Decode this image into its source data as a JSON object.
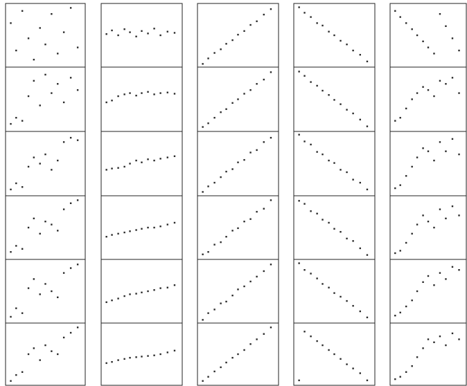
{
  "chart_data": [
    {
      "type": "scatter",
      "color": "#2a2a2a",
      "xlim": [
        0,
        1
      ],
      "ylim": [
        0,
        1
      ],
      "x": [
        0.05,
        0.12,
        0.2,
        0.28,
        0.35,
        0.43,
        0.5,
        0.58,
        0.66,
        0.74,
        0.83,
        0.92
      ],
      "y": [
        0.7,
        0.25,
        0.9,
        0.45,
        0.1,
        0.62,
        0.35,
        0.85,
        0.2,
        0.55,
        0.95,
        0.3
      ]
    },
    {
      "type": "scatter",
      "color": "#2a2a2a",
      "xlim": [
        0,
        1
      ],
      "ylim": [
        0,
        1
      ],
      "x": [
        0.05,
        0.12,
        0.2,
        0.28,
        0.35,
        0.43,
        0.5,
        0.58,
        0.66,
        0.74,
        0.83,
        0.92
      ],
      "y": [
        0.52,
        0.58,
        0.5,
        0.6,
        0.55,
        0.48,
        0.57,
        0.53,
        0.61,
        0.5,
        0.56,
        0.54
      ]
    },
    {
      "type": "scatter",
      "color": "#2a2a2a",
      "xlim": [
        0,
        1
      ],
      "ylim": [
        0,
        1
      ],
      "x": [
        0.05,
        0.12,
        0.2,
        0.28,
        0.35,
        0.43,
        0.5,
        0.58,
        0.66,
        0.74,
        0.83,
        0.92
      ],
      "y": [
        0.03,
        0.12,
        0.21,
        0.27,
        0.36,
        0.42,
        0.51,
        0.57,
        0.67,
        0.73,
        0.84,
        0.93
      ]
    },
    {
      "type": "scatter",
      "color": "#2a2a2a",
      "xlim": [
        0,
        1
      ],
      "ylim": [
        0,
        1
      ],
      "x": [
        0.05,
        0.12,
        0.2,
        0.28,
        0.35,
        0.43,
        0.5,
        0.58,
        0.66,
        0.74,
        0.83,
        0.92
      ],
      "y": [
        0.96,
        0.87,
        0.8,
        0.7,
        0.66,
        0.56,
        0.5,
        0.41,
        0.35,
        0.25,
        0.18,
        0.07
      ]
    },
    {
      "type": "scatter",
      "color": "#2a2a2a",
      "xlim": [
        0,
        1
      ],
      "ylim": [
        0,
        1
      ],
      "x": [
        0.05,
        0.12,
        0.2,
        0.28,
        0.35,
        0.43,
        0.5,
        0.58,
        0.66,
        0.74,
        0.83,
        0.92
      ],
      "y": [
        0.9,
        0.8,
        0.7,
        0.6,
        0.5,
        0.4,
        0.3,
        0.2,
        0.85,
        0.65,
        0.45,
        0.25
      ]
    },
    {
      "type": "scatter",
      "color": "#2a2a2a",
      "xlim": [
        0,
        1
      ],
      "ylim": [
        0,
        1
      ],
      "x": [
        0.05,
        0.12,
        0.2,
        0.28,
        0.35,
        0.43,
        0.5,
        0.58,
        0.66,
        0.74,
        0.83,
        0.92
      ],
      "y": [
        0.1,
        0.2,
        0.15,
        0.55,
        0.8,
        0.4,
        0.9,
        0.6,
        0.75,
        0.45,
        0.85,
        0.65
      ]
    },
    {
      "type": "scatter",
      "color": "#2a2a2a",
      "xlim": [
        0,
        1
      ],
      "ylim": [
        0,
        1
      ],
      "x": [
        0.05,
        0.12,
        0.2,
        0.28,
        0.35,
        0.43,
        0.5,
        0.58,
        0.66,
        0.74,
        0.83,
        0.92
      ],
      "y": [
        0.45,
        0.48,
        0.55,
        0.58,
        0.6,
        0.56,
        0.6,
        0.62,
        0.58,
        0.6,
        0.61,
        0.59
      ]
    },
    {
      "type": "scatter",
      "color": "#2a2a2a",
      "xlim": [
        0,
        1
      ],
      "ylim": [
        0,
        1
      ],
      "x": [
        0.05,
        0.12,
        0.2,
        0.28,
        0.35,
        0.43,
        0.5,
        0.58,
        0.66,
        0.74,
        0.83,
        0.92
      ],
      "y": [
        0.05,
        0.11,
        0.2,
        0.29,
        0.34,
        0.44,
        0.5,
        0.59,
        0.65,
        0.75,
        0.82,
        0.94
      ]
    },
    {
      "type": "scatter",
      "color": "#2a2a2a",
      "xlim": [
        0,
        1
      ],
      "ylim": [
        0,
        1
      ],
      "x": [
        0.05,
        0.12,
        0.2,
        0.28,
        0.35,
        0.43,
        0.5,
        0.58,
        0.66,
        0.74,
        0.83,
        0.92
      ],
      "y": [
        0.95,
        0.88,
        0.78,
        0.72,
        0.64,
        0.57,
        0.49,
        0.42,
        0.33,
        0.27,
        0.17,
        0.06
      ]
    },
    {
      "type": "scatter",
      "color": "#2a2a2a",
      "xlim": [
        0,
        1
      ],
      "ylim": [
        0,
        1
      ],
      "x": [
        0.05,
        0.12,
        0.2,
        0.28,
        0.35,
        0.43,
        0.5,
        0.58,
        0.66,
        0.74,
        0.83,
        0.92
      ],
      "y": [
        0.15,
        0.2,
        0.35,
        0.5,
        0.6,
        0.7,
        0.65,
        0.55,
        0.8,
        0.75,
        0.85,
        0.6
      ]
    },
    {
      "type": "scatter",
      "color": "#2a2a2a",
      "xlim": [
        0,
        1
      ],
      "ylim": [
        0,
        1
      ],
      "x": [
        0.05,
        0.12,
        0.2,
        0.28,
        0.35,
        0.43,
        0.5,
        0.58,
        0.66,
        0.74,
        0.83,
        0.92
      ],
      "y": [
        0.08,
        0.18,
        0.12,
        0.45,
        0.6,
        0.5,
        0.65,
        0.4,
        0.55,
        0.85,
        0.92,
        0.88
      ]
    },
    {
      "type": "scatter",
      "color": "#2a2a2a",
      "xlim": [
        0,
        1
      ],
      "ylim": [
        0,
        1
      ],
      "x": [
        0.05,
        0.12,
        0.2,
        0.28,
        0.35,
        0.43,
        0.5,
        0.58,
        0.66,
        0.74,
        0.83,
        0.92
      ],
      "y": [
        0.4,
        0.42,
        0.43,
        0.45,
        0.5,
        0.55,
        0.52,
        0.57,
        0.55,
        0.58,
        0.6,
        0.62
      ]
    },
    {
      "type": "scatter",
      "color": "#2a2a2a",
      "xlim": [
        0,
        1
      ],
      "ylim": [
        0,
        1
      ],
      "x": [
        0.05,
        0.12,
        0.2,
        0.28,
        0.35,
        0.43,
        0.5,
        0.58,
        0.66,
        0.74,
        0.83,
        0.92
      ],
      "y": [
        0.04,
        0.13,
        0.19,
        0.28,
        0.37,
        0.41,
        0.52,
        0.56,
        0.68,
        0.72,
        0.85,
        0.92
      ]
    },
    {
      "type": "scatter",
      "color": "#2a2a2a",
      "xlim": [
        0,
        1
      ],
      "ylim": [
        0,
        1
      ],
      "x": [
        0.05,
        0.12,
        0.2,
        0.28,
        0.35,
        0.43,
        0.5,
        0.58,
        0.66,
        0.74,
        0.83,
        0.92
      ],
      "y": [
        0.97,
        0.86,
        0.81,
        0.69,
        0.65,
        0.55,
        0.51,
        0.4,
        0.36,
        0.24,
        0.19,
        0.08
      ]
    },
    {
      "type": "scatter",
      "color": "#2a2a2a",
      "xlim": [
        0,
        1
      ],
      "ylim": [
        0,
        1
      ],
      "x": [
        0.05,
        0.12,
        0.2,
        0.28,
        0.35,
        0.43,
        0.5,
        0.58,
        0.66,
        0.74,
        0.83,
        0.92
      ],
      "y": [
        0.1,
        0.15,
        0.3,
        0.45,
        0.6,
        0.75,
        0.7,
        0.55,
        0.85,
        0.7,
        0.9,
        0.65
      ]
    },
    {
      "type": "scatter",
      "color": "#2a2a2a",
      "xlim": [
        0,
        1
      ],
      "ylim": [
        0,
        1
      ],
      "x": [
        0.05,
        0.12,
        0.2,
        0.28,
        0.35,
        0.43,
        0.5,
        0.58,
        0.66,
        0.74,
        0.83,
        0.92
      ],
      "y": [
        0.1,
        0.2,
        0.15,
        0.5,
        0.65,
        0.4,
        0.6,
        0.55,
        0.45,
        0.8,
        0.9,
        0.95
      ]
    },
    {
      "type": "scatter",
      "color": "#2a2a2a",
      "xlim": [
        0,
        1
      ],
      "ylim": [
        0,
        1
      ],
      "x": [
        0.05,
        0.12,
        0.2,
        0.28,
        0.35,
        0.43,
        0.5,
        0.58,
        0.66,
        0.74,
        0.83,
        0.92
      ],
      "y": [
        0.35,
        0.38,
        0.4,
        0.42,
        0.44,
        0.46,
        0.48,
        0.5,
        0.5,
        0.52,
        0.55,
        0.58
      ]
    },
    {
      "type": "scatter",
      "color": "#2a2a2a",
      "xlim": [
        0,
        1
      ],
      "ylim": [
        0,
        1
      ],
      "x": [
        0.05,
        0.12,
        0.2,
        0.28,
        0.35,
        0.43,
        0.5,
        0.58,
        0.66,
        0.74,
        0.83,
        0.92
      ],
      "y": [
        0.06,
        0.1,
        0.22,
        0.26,
        0.35,
        0.45,
        0.49,
        0.6,
        0.64,
        0.76,
        0.81,
        0.95
      ]
    },
    {
      "type": "scatter",
      "color": "#2a2a2a",
      "xlim": [
        0,
        1
      ],
      "ylim": [
        0,
        1
      ],
      "x": [
        0.05,
        0.12,
        0.2,
        0.28,
        0.35,
        0.43,
        0.5,
        0.58,
        0.66,
        0.74,
        0.83,
        0.92
      ],
      "y": [
        0.94,
        0.89,
        0.77,
        0.73,
        0.63,
        0.58,
        0.48,
        0.43,
        0.32,
        0.28,
        0.16,
        0.05
      ]
    },
    {
      "type": "scatter",
      "color": "#2a2a2a",
      "xlim": [
        0,
        1
      ],
      "ylim": [
        0,
        1
      ],
      "x": [
        0.05,
        0.12,
        0.2,
        0.28,
        0.35,
        0.43,
        0.5,
        0.58,
        0.66,
        0.74,
        0.83,
        0.92
      ],
      "y": [
        0.08,
        0.12,
        0.25,
        0.4,
        0.55,
        0.7,
        0.6,
        0.5,
        0.8,
        0.65,
        0.85,
        0.7
      ]
    },
    {
      "type": "scatter",
      "color": "#2a2a2a",
      "xlim": [
        0,
        1
      ],
      "ylim": [
        0,
        1
      ],
      "x": [
        0.05,
        0.12,
        0.2,
        0.28,
        0.35,
        0.43,
        0.5,
        0.58,
        0.66,
        0.74,
        0.83,
        0.92
      ],
      "y": [
        0.08,
        0.22,
        0.14,
        0.55,
        0.7,
        0.45,
        0.62,
        0.5,
        0.4,
        0.8,
        0.88,
        0.94
      ]
    },
    {
      "type": "scatter",
      "color": "#2a2a2a",
      "xlim": [
        0,
        1
      ],
      "ylim": [
        0,
        1
      ],
      "x": [
        0.05,
        0.12,
        0.2,
        0.28,
        0.35,
        0.43,
        0.5,
        0.58,
        0.66,
        0.74,
        0.83,
        0.92
      ],
      "y": [
        0.32,
        0.35,
        0.38,
        0.42,
        0.45,
        0.46,
        0.48,
        0.5,
        0.52,
        0.55,
        0.56,
        0.6
      ]
    },
    {
      "type": "scatter",
      "color": "#2a2a2a",
      "xlim": [
        0,
        1
      ],
      "ylim": [
        0,
        1
      ],
      "x": [
        0.05,
        0.12,
        0.2,
        0.28,
        0.35,
        0.43,
        0.5,
        0.58,
        0.66,
        0.74,
        0.83,
        0.92
      ],
      "y": [
        0.03,
        0.14,
        0.2,
        0.3,
        0.33,
        0.43,
        0.53,
        0.58,
        0.66,
        0.74,
        0.83,
        0.94
      ]
    },
    {
      "type": "scatter",
      "color": "#2a2a2a",
      "xlim": [
        0,
        1
      ],
      "ylim": [
        0,
        1
      ],
      "x": [
        0.05,
        0.12,
        0.2,
        0.28,
        0.35,
        0.43,
        0.5,
        0.58,
        0.66,
        0.74,
        0.83,
        0.92
      ],
      "y": [
        0.96,
        0.85,
        0.79,
        0.71,
        0.62,
        0.56,
        0.47,
        0.41,
        0.34,
        0.26,
        0.17,
        0.07
      ]
    },
    {
      "type": "scatter",
      "color": "#2a2a2a",
      "xlim": [
        0,
        1
      ],
      "ylim": [
        0,
        1
      ],
      "x": [
        0.05,
        0.12,
        0.2,
        0.28,
        0.35,
        0.43,
        0.5,
        0.58,
        0.66,
        0.74,
        0.83,
        0.92
      ],
      "y": [
        0.1,
        0.15,
        0.25,
        0.35,
        0.5,
        0.65,
        0.75,
        0.6,
        0.8,
        0.7,
        0.9,
        0.85
      ]
    },
    {
      "type": "scatter",
      "color": "#2a2a2a",
      "xlim": [
        0,
        1
      ],
      "ylim": [
        0,
        1
      ],
      "x": [
        0.05,
        0.12,
        0.2,
        0.28,
        0.35,
        0.43,
        0.5,
        0.58,
        0.66,
        0.74,
        0.83,
        0.92
      ],
      "y": [
        0.05,
        0.15,
        0.2,
        0.5,
        0.6,
        0.4,
        0.65,
        0.55,
        0.5,
        0.78,
        0.86,
        0.95
      ]
    },
    {
      "type": "scatter",
      "color": "#2a2a2a",
      "xlim": [
        0,
        1
      ],
      "ylim": [
        0,
        1
      ],
      "x": [
        0.05,
        0.12,
        0.2,
        0.28,
        0.35,
        0.43,
        0.5,
        0.58,
        0.66,
        0.74,
        0.83,
        0.92
      ],
      "y": [
        0.35,
        0.37,
        0.4,
        0.42,
        0.44,
        0.45,
        0.46,
        0.47,
        0.48,
        0.5,
        0.53,
        0.56
      ]
    },
    {
      "type": "scatter",
      "color": "#2a2a2a",
      "xlim": [
        0,
        1
      ],
      "ylim": [
        0,
        1
      ],
      "x": [
        0.05,
        0.12,
        0.2,
        0.28,
        0.35,
        0.43,
        0.5,
        0.58,
        0.66,
        0.74,
        0.83,
        0.92
      ],
      "y": [
        0.05,
        0.12,
        0.21,
        0.28,
        0.36,
        0.44,
        0.5,
        0.57,
        0.67,
        0.75,
        0.84,
        0.95
      ]
    },
    {
      "type": "scatter",
      "color": "#2a2a2a",
      "xlim": [
        0,
        1
      ],
      "ylim": [
        0,
        1
      ],
      "x": [
        0.05,
        0.12,
        0.2,
        0.28,
        0.35,
        0.43,
        0.5,
        0.58,
        0.66,
        0.74,
        0.83,
        0.92
      ],
      "y": [
        0.06,
        0.88,
        0.8,
        0.72,
        0.65,
        0.57,
        0.5,
        0.42,
        0.33,
        0.26,
        0.18,
        0.06
      ]
    },
    {
      "type": "scatter",
      "color": "#2a2a2a",
      "xlim": [
        0,
        1
      ],
      "ylim": [
        0,
        1
      ],
      "x": [
        0.05,
        0.12,
        0.2,
        0.28,
        0.35,
        0.43,
        0.5,
        0.58,
        0.66,
        0.74,
        0.83,
        0.92
      ],
      "y": [
        0.08,
        0.12,
        0.2,
        0.3,
        0.45,
        0.6,
        0.75,
        0.7,
        0.8,
        0.65,
        0.85,
        0.75
      ]
    }
  ]
}
